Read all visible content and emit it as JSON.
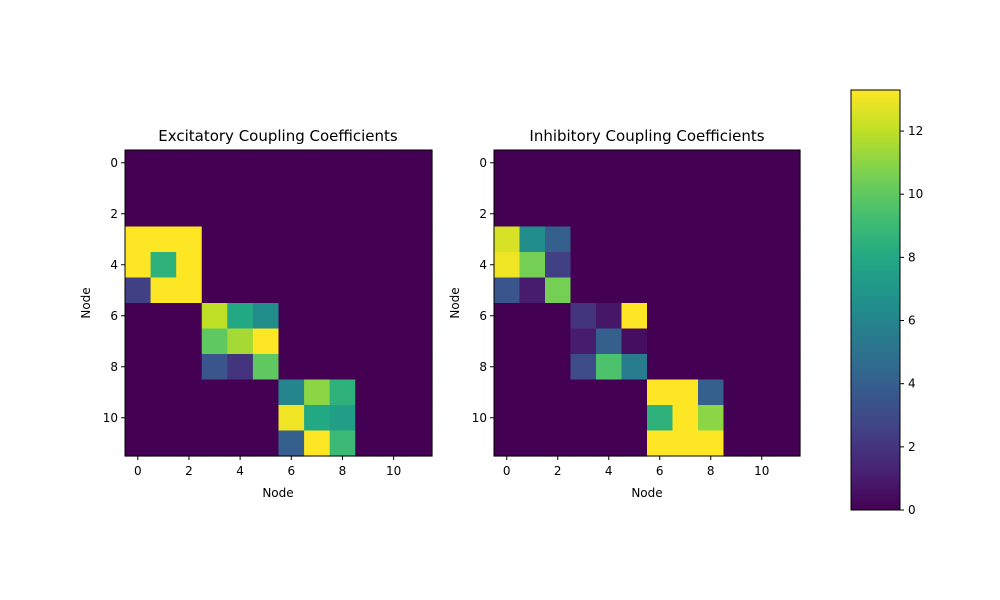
{
  "chart_data": [
    {
      "type": "heatmap",
      "title": "Excitatory Coupling Coefficients",
      "xlabel": "Node",
      "ylabel": "Node",
      "xticks": [
        "0",
        "2",
        "4",
        "6",
        "8",
        "10"
      ],
      "yticks": [
        "0",
        "2",
        "4",
        "6",
        "8",
        "10"
      ],
      "colormap": "viridis",
      "vmin": 0,
      "vmax": 13.3,
      "matrix": [
        [
          0,
          0,
          0,
          0,
          0,
          0,
          0,
          0,
          0,
          0,
          0,
          0
        ],
        [
          0,
          0,
          0,
          0,
          0,
          0,
          0,
          0,
          0,
          0,
          0,
          0
        ],
        [
          0,
          0,
          0,
          0,
          0,
          0,
          0,
          0,
          0,
          0,
          0,
          0
        ],
        [
          13.3,
          13.3,
          13.3,
          0,
          0,
          0,
          0,
          0,
          0,
          0,
          0,
          0
        ],
        [
          13.3,
          8.5,
          13.3,
          0,
          0,
          0,
          0,
          0,
          0,
          0,
          0,
          0
        ],
        [
          2.5,
          13.3,
          13.3,
          0,
          0,
          0,
          0,
          0,
          0,
          0,
          0,
          0
        ],
        [
          0,
          0,
          0,
          12.0,
          8.0,
          6.5,
          0,
          0,
          0,
          0,
          0,
          0
        ],
        [
          0,
          0,
          0,
          10.0,
          11.5,
          13.3,
          0,
          0,
          0,
          0,
          0,
          0
        ],
        [
          0,
          0,
          0,
          3.5,
          2.0,
          10.0,
          0,
          0,
          0,
          0,
          0,
          0
        ],
        [
          0,
          0,
          0,
          0,
          0,
          0,
          6.0,
          11.0,
          8.5,
          0,
          0,
          0
        ],
        [
          0,
          0,
          0,
          0,
          0,
          0,
          13.0,
          8.0,
          7.5,
          0,
          0,
          0
        ],
        [
          0,
          0,
          0,
          0,
          0,
          0,
          4.0,
          13.3,
          9.0,
          0,
          0,
          0
        ]
      ]
    },
    {
      "type": "heatmap",
      "title": "Inhibitory Coupling Coefficients",
      "xlabel": "Node",
      "ylabel": "Node",
      "xticks": [
        "0",
        "2",
        "4",
        "6",
        "8",
        "10"
      ],
      "yticks": [
        "0",
        "2",
        "4",
        "6",
        "8",
        "10"
      ],
      "colormap": "viridis",
      "vmin": 0,
      "vmax": 13.3,
      "matrix": [
        [
          0,
          0,
          0,
          0,
          0,
          0,
          0,
          0,
          0,
          0,
          0,
          0
        ],
        [
          0,
          0,
          0,
          0,
          0,
          0,
          0,
          0,
          0,
          0,
          0,
          0
        ],
        [
          0,
          0,
          0,
          0,
          0,
          0,
          0,
          0,
          0,
          0,
          0,
          0
        ],
        [
          12.5,
          6.5,
          4.0,
          0,
          0,
          0,
          0,
          0,
          0,
          0,
          0,
          0
        ],
        [
          13.0,
          10.5,
          2.5,
          0,
          0,
          0,
          0,
          0,
          0,
          0,
          0,
          0
        ],
        [
          3.5,
          1.0,
          10.5,
          0,
          0,
          0,
          0,
          0,
          0,
          0,
          0,
          0
        ],
        [
          0,
          0,
          0,
          2.0,
          0.8,
          13.3,
          0,
          0,
          0,
          0,
          0,
          0
        ],
        [
          0,
          0,
          0,
          1.0,
          4.0,
          0.5,
          0,
          0,
          0,
          0,
          0,
          0
        ],
        [
          0,
          0,
          0,
          3.0,
          9.5,
          5.5,
          0,
          0,
          0,
          0,
          0,
          0
        ],
        [
          0,
          0,
          0,
          0,
          0,
          0,
          13.3,
          13.3,
          4.0,
          0,
          0,
          0
        ],
        [
          0,
          0,
          0,
          0,
          0,
          0,
          8.5,
          13.3,
          11.0,
          0,
          0,
          0
        ],
        [
          0,
          0,
          0,
          0,
          0,
          0,
          13.3,
          13.3,
          13.3,
          0,
          0,
          0
        ]
      ]
    }
  ],
  "colorbar": {
    "ticks": [
      {
        "value": 0,
        "label": "0"
      },
      {
        "value": 2,
        "label": "2"
      },
      {
        "value": 4,
        "label": "4"
      },
      {
        "value": 6,
        "label": "6"
      },
      {
        "value": 8,
        "label": "8"
      },
      {
        "value": 10,
        "label": "10"
      },
      {
        "value": 12,
        "label": "12"
      }
    ],
    "vmin": 0,
    "vmax": 13.3
  }
}
